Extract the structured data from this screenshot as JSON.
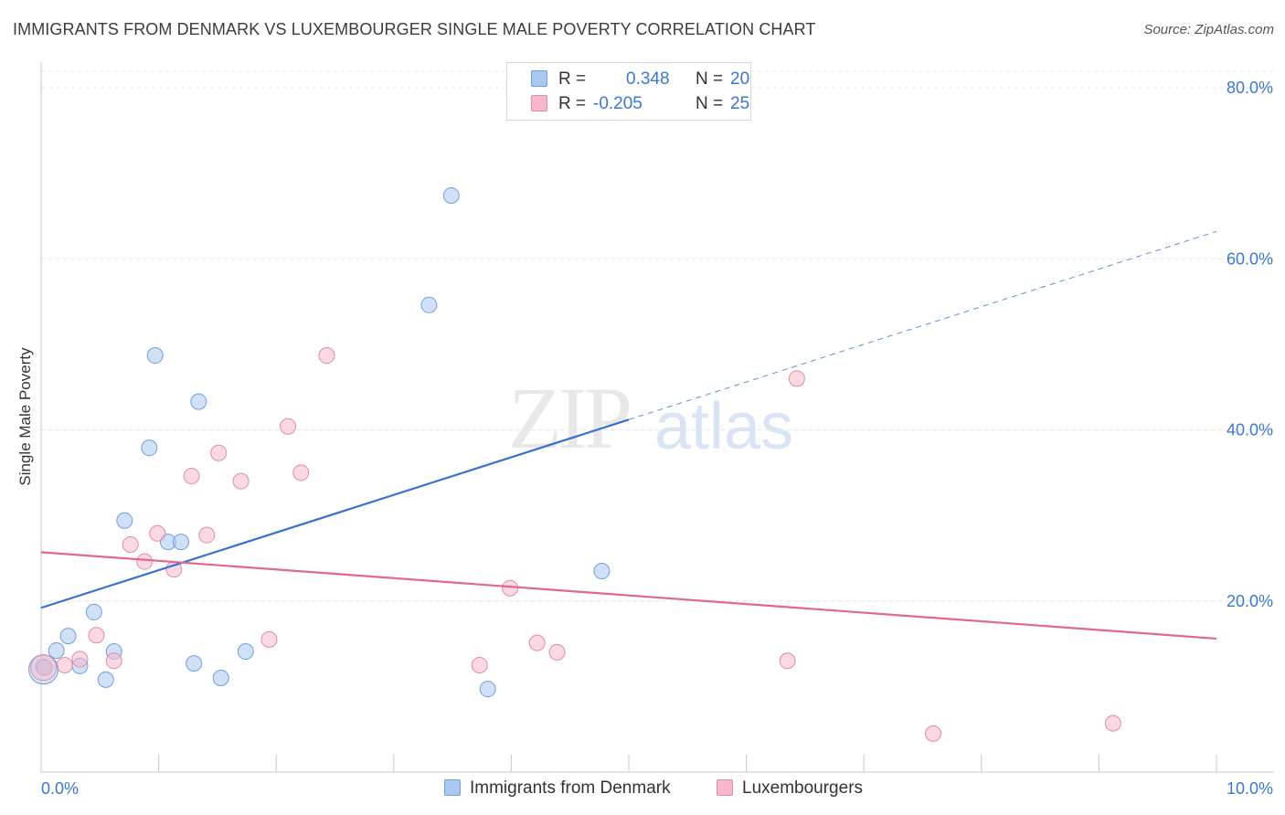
{
  "title": "IMMIGRANTS FROM DENMARK VS LUXEMBOURGER SINGLE MALE POVERTY CORRELATION CHART",
  "source": "Source: ZipAtlas.com",
  "watermark": {
    "zip": "ZIP",
    "atlas": "atlas"
  },
  "legend_top": {
    "rows": [
      {
        "r_label": "R =",
        "r_value": "0.348",
        "n_label": "N =",
        "n_value": "20",
        "color": "#a9c8f0"
      },
      {
        "r_label": "R =",
        "r_value": "-0.205",
        "n_label": "N =",
        "n_value": "25",
        "color": "#f5b9cb"
      }
    ]
  },
  "chart_data": {
    "type": "scatter",
    "title": "IMMIGRANTS FROM DENMARK VS LUXEMBOURGER SINGLE MALE POVERTY CORRELATION CHART",
    "xlabel": "",
    "ylabel": "Single Male Poverty",
    "xlim": [
      0,
      10
    ],
    "ylim": [
      0,
      80
    ],
    "x_tick_labels": [
      "0.0%",
      "10.0%"
    ],
    "y_tick_labels": [
      "20.0%",
      "40.0%",
      "60.0%",
      "80.0%"
    ],
    "y_ticks": [
      20,
      40,
      60,
      80
    ],
    "grid": "horizontal dashed",
    "legend_placement": "bottom",
    "series": [
      {
        "name": "Immigrants from Denmark",
        "color": "#a9c8f0",
        "stroke": "#6f9fdd",
        "line_color": "#3572d1",
        "points": [
          [
            0.02,
            12.3
          ],
          [
            0.13,
            14.2
          ],
          [
            0.23,
            15.9
          ],
          [
            0.33,
            12.4
          ],
          [
            0.45,
            18.7
          ],
          [
            0.55,
            10.8
          ],
          [
            0.62,
            14.1
          ],
          [
            0.71,
            29.4
          ],
          [
            0.92,
            37.9
          ],
          [
            0.97,
            48.7
          ],
          [
            1.08,
            26.9
          ],
          [
            1.19,
            26.9
          ],
          [
            1.3,
            12.7
          ],
          [
            1.34,
            43.3
          ],
          [
            1.53,
            11.0
          ],
          [
            1.74,
            14.1
          ],
          [
            3.3,
            54.6
          ],
          [
            3.49,
            67.4
          ],
          [
            3.8,
            9.7
          ],
          [
            4.77,
            23.5
          ]
        ],
        "trend": {
          "x_start": 0.0,
          "y_start": 19.2,
          "x_end": 5.0,
          "y_end": 41.2,
          "x_dash_end": 10.0,
          "y_dash_end": 63.2
        }
      },
      {
        "name": "Luxembourgers",
        "color": "#f5b9cb",
        "stroke": "#e28aa6",
        "line_color": "#e0678f",
        "points": [
          [
            0.03,
            12.2
          ],
          [
            0.2,
            12.5
          ],
          [
            0.33,
            13.2
          ],
          [
            0.47,
            16.0
          ],
          [
            0.62,
            13.0
          ],
          [
            0.76,
            26.6
          ],
          [
            0.88,
            24.6
          ],
          [
            0.99,
            27.9
          ],
          [
            1.13,
            23.7
          ],
          [
            1.28,
            34.6
          ],
          [
            1.41,
            27.7
          ],
          [
            1.51,
            37.3
          ],
          [
            1.7,
            34.0
          ],
          [
            1.94,
            15.5
          ],
          [
            2.1,
            40.4
          ],
          [
            2.21,
            35.0
          ],
          [
            2.43,
            48.7
          ],
          [
            3.73,
            12.5
          ],
          [
            3.99,
            21.5
          ],
          [
            4.22,
            15.1
          ],
          [
            4.39,
            14.0
          ],
          [
            6.35,
            13.0
          ],
          [
            6.43,
            46.0
          ],
          [
            7.59,
            4.5
          ],
          [
            9.12,
            5.7
          ]
        ],
        "trend": {
          "x_start": 0.0,
          "y_start": 25.7,
          "x_end": 10.0,
          "y_end": 15.6
        }
      }
    ]
  }
}
